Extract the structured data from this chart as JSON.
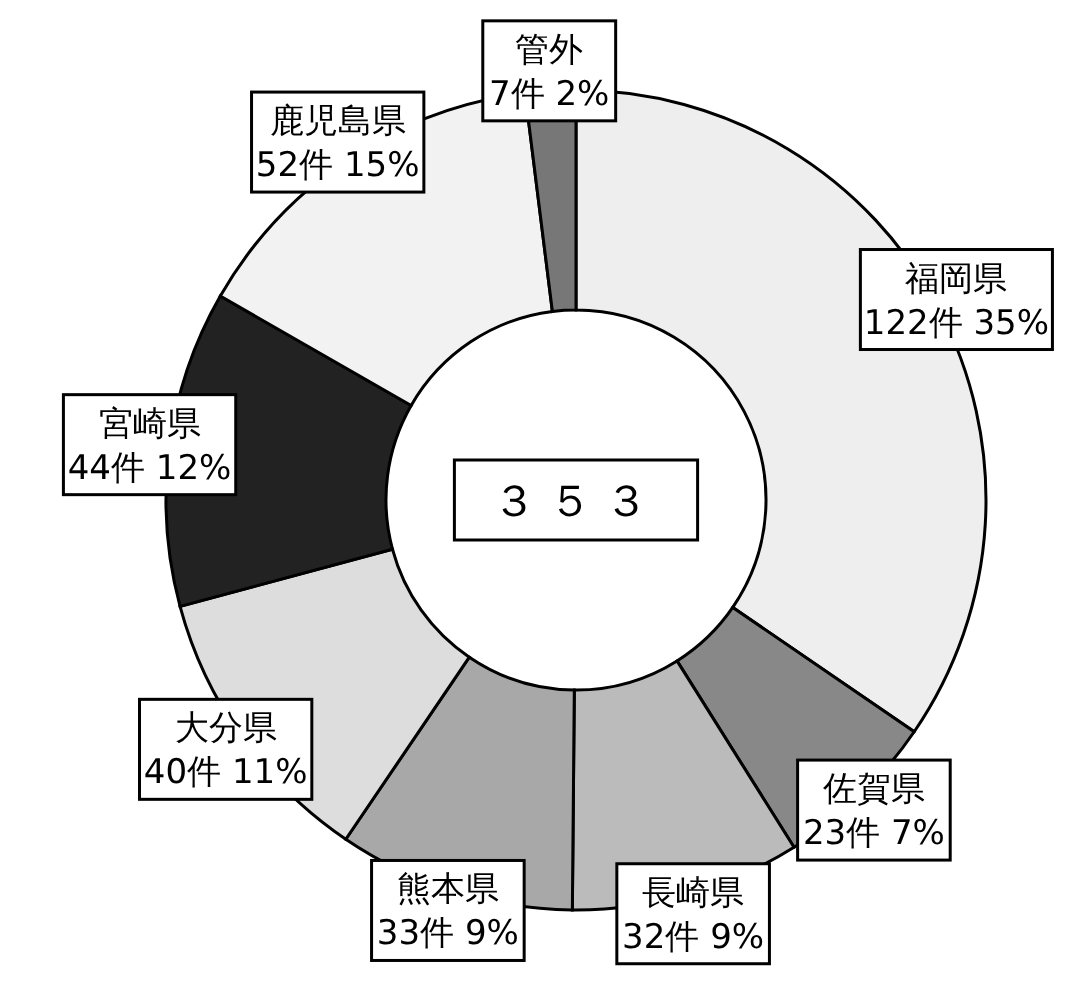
{
  "chart_data": {
    "type": "donut",
    "categories": [
      "福岡県",
      "佐賀県",
      "長崎県",
      "熊本県",
      "大分県",
      "宮崎県",
      "鹿児島県",
      "管外"
    ],
    "values": [
      122,
      23,
      32,
      33,
      40,
      44,
      52,
      7
    ],
    "value_labels": [
      "122件 35%",
      "23件 7%",
      "32件 9%",
      "33件 9%",
      "40件 11%",
      "44件 12%",
      "52件 15%",
      "7件 2%"
    ],
    "colors": [
      "#eeeeee",
      "#888888",
      "#bbbbbb",
      "#a8a8a8",
      "#dddddd",
      "#222222",
      "#f2f2f2",
      "#777777"
    ],
    "annotations": [
      "３５３"
    ]
  }
}
